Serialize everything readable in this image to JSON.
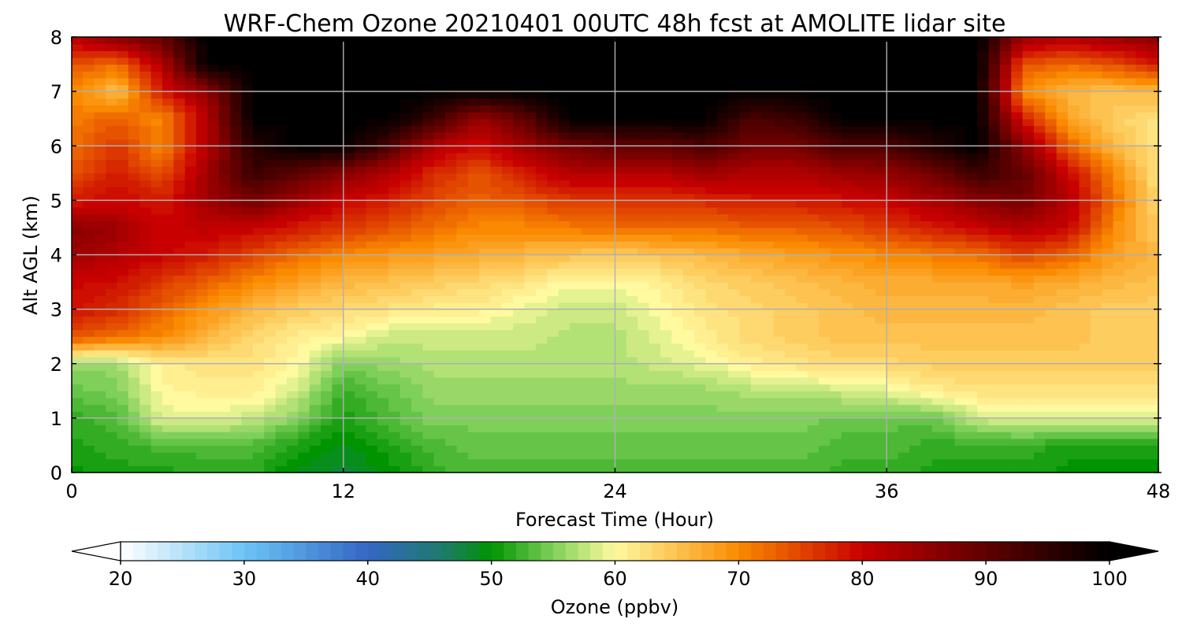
{
  "title": "WRF-Chem Ozone  20210401 00UTC 48h fcst at AMOLITE lidar site",
  "chart_data": {
    "type": "heatmap",
    "title": "WRF-Chem Ozone  20210401 00UTC 48h fcst at AMOLITE lidar site",
    "xlabel": "Forecast Time (Hour)",
    "ylabel": "Alt AGL (km)",
    "xlim": [
      0,
      48
    ],
    "ylim": [
      0,
      8
    ],
    "xticks": [
      0,
      12,
      24,
      36,
      48
    ],
    "xtick_labels": [
      "0",
      "12",
      "24",
      "36",
      "48"
    ],
    "yticks": [
      0,
      1,
      2,
      3,
      4,
      5,
      6,
      7,
      8
    ],
    "ytick_labels": [
      "0",
      "1",
      "2",
      "3",
      "4",
      "5",
      "6",
      "7",
      "8"
    ],
    "grid": true,
    "x": [
      0,
      2,
      4,
      6,
      8,
      10,
      12,
      14,
      16,
      18,
      20,
      22,
      24,
      26,
      28,
      30,
      32,
      34,
      36,
      38,
      40,
      42,
      44,
      46,
      48
    ],
    "y": [
      0,
      0.5,
      1,
      1.5,
      2,
      2.5,
      3,
      3.5,
      4,
      4.5,
      5,
      5.5,
      6,
      6.5,
      7,
      7.5,
      8
    ],
    "z": [
      [
        50,
        51,
        51,
        52,
        52,
        49,
        48,
        50,
        52,
        53,
        53,
        53,
        53,
        53,
        53,
        53,
        53,
        52,
        52,
        51,
        51,
        51,
        50,
        50,
        50
      ],
      [
        51,
        52,
        53,
        53,
        53,
        51,
        49,
        51,
        53,
        54,
        54,
        54,
        54,
        54,
        54,
        54,
        54,
        53,
        53,
        52,
        52,
        52,
        51,
        51,
        51
      ],
      [
        52,
        53,
        59,
        59,
        58,
        55,
        51,
        53,
        55,
        55,
        55,
        55,
        55,
        55,
        55,
        55,
        55,
        54,
        54,
        54,
        58,
        59,
        59,
        59,
        59
      ],
      [
        54,
        55,
        60,
        61,
        61,
        58,
        52,
        54,
        56,
        56,
        56,
        56,
        56,
        56,
        56,
        57,
        57,
        58,
        59,
        61,
        62,
        62,
        62,
        62,
        62
      ],
      [
        56,
        56,
        61,
        62,
        62,
        60,
        55,
        56,
        57,
        57,
        57,
        57,
        57,
        58,
        59,
        61,
        62,
        63,
        63,
        64,
        64,
        64,
        64,
        64,
        64
      ],
      [
        74,
        72,
        70,
        66,
        63,
        61,
        60,
        58,
        58,
        58,
        58,
        57,
        57,
        59,
        61,
        63,
        64,
        65,
        65,
        65,
        65,
        65,
        65,
        64,
        64
      ],
      [
        79,
        77,
        73,
        69,
        66,
        64,
        63,
        62,
        61,
        61,
        59,
        58,
        58,
        60,
        62,
        63,
        64,
        65,
        66,
        66,
        66,
        66,
        65,
        64,
        64
      ],
      [
        80,
        79,
        76,
        73,
        70,
        68,
        66,
        65,
        64,
        63,
        62,
        60,
        60,
        61,
        63,
        64,
        65,
        66,
        67,
        67,
        67,
        68,
        67,
        66,
        65
      ],
      [
        84,
        82,
        80,
        78,
        75,
        72,
        70,
        69,
        68,
        67,
        66,
        65,
        64,
        65,
        66,
        67,
        68,
        69,
        70,
        71,
        72,
        75,
        73,
        68,
        66
      ],
      [
        86,
        84,
        80,
        81,
        80,
        78,
        76,
        74,
        72,
        70,
        70,
        71,
        72,
        72,
        72,
        73,
        73,
        74,
        76,
        78,
        80,
        82,
        80,
        70,
        64
      ],
      [
        78,
        80,
        78,
        84,
        88,
        84,
        80,
        78,
        75,
        73,
        74,
        76,
        76,
        76,
        77,
        78,
        78,
        79,
        80,
        83,
        86,
        88,
        82,
        72,
        63
      ],
      [
        74,
        78,
        74,
        84,
        94,
        90,
        86,
        82,
        77,
        74,
        78,
        82,
        82,
        82,
        84,
        82,
        82,
        84,
        85,
        88,
        94,
        90,
        80,
        70,
        62
      ],
      [
        72,
        76,
        70,
        82,
        96,
        100,
        100,
        92,
        82,
        79,
        84,
        88,
        90,
        90,
        92,
        88,
        88,
        92,
        92,
        96,
        100,
        86,
        73,
        66,
        62
      ],
      [
        71,
        73,
        70,
        82,
        100,
        100,
        100,
        100,
        94,
        84,
        90,
        100,
        100,
        100,
        100,
        92,
        94,
        100,
        100,
        100,
        100,
        78,
        68,
        64,
        62
      ],
      [
        70,
        65,
        78,
        85,
        100,
        100,
        100,
        100,
        100,
        100,
        100,
        100,
        100,
        100,
        100,
        100,
        100,
        100,
        100,
        100,
        100,
        70,
        66,
        65,
        66
      ],
      [
        74,
        72,
        82,
        100,
        100,
        100,
        100,
        100,
        100,
        100,
        100,
        100,
        100,
        100,
        100,
        100,
        100,
        100,
        100,
        100,
        100,
        74,
        72,
        74,
        78
      ],
      [
        82,
        86,
        90,
        100,
        100,
        100,
        100,
        100,
        100,
        100,
        100,
        100,
        100,
        100,
        100,
        100,
        100,
        100,
        100,
        100,
        100,
        84,
        82,
        84,
        86
      ]
    ],
    "colorbar": {
      "label": "Ozone  (ppbv)",
      "min": 20,
      "max": 100,
      "extend": "both",
      "ticks": [
        20,
        30,
        40,
        50,
        60,
        70,
        80,
        90,
        100
      ],
      "tick_labels": [
        "20",
        "30",
        "40",
        "50",
        "60",
        "70",
        "80",
        "90",
        "100"
      ],
      "colormap_stops": [
        [
          20,
          "#ffffff"
        ],
        [
          30,
          "#6cc4f5"
        ],
        [
          40,
          "#3466c4"
        ],
        [
          46,
          "#1f7a6e"
        ],
        [
          50,
          "#009400"
        ],
        [
          55,
          "#7fd05a"
        ],
        [
          60,
          "#fffaa0"
        ],
        [
          70,
          "#fa8a00"
        ],
        [
          80,
          "#c80000"
        ],
        [
          90,
          "#600000"
        ],
        [
          100,
          "#000000"
        ]
      ]
    }
  }
}
